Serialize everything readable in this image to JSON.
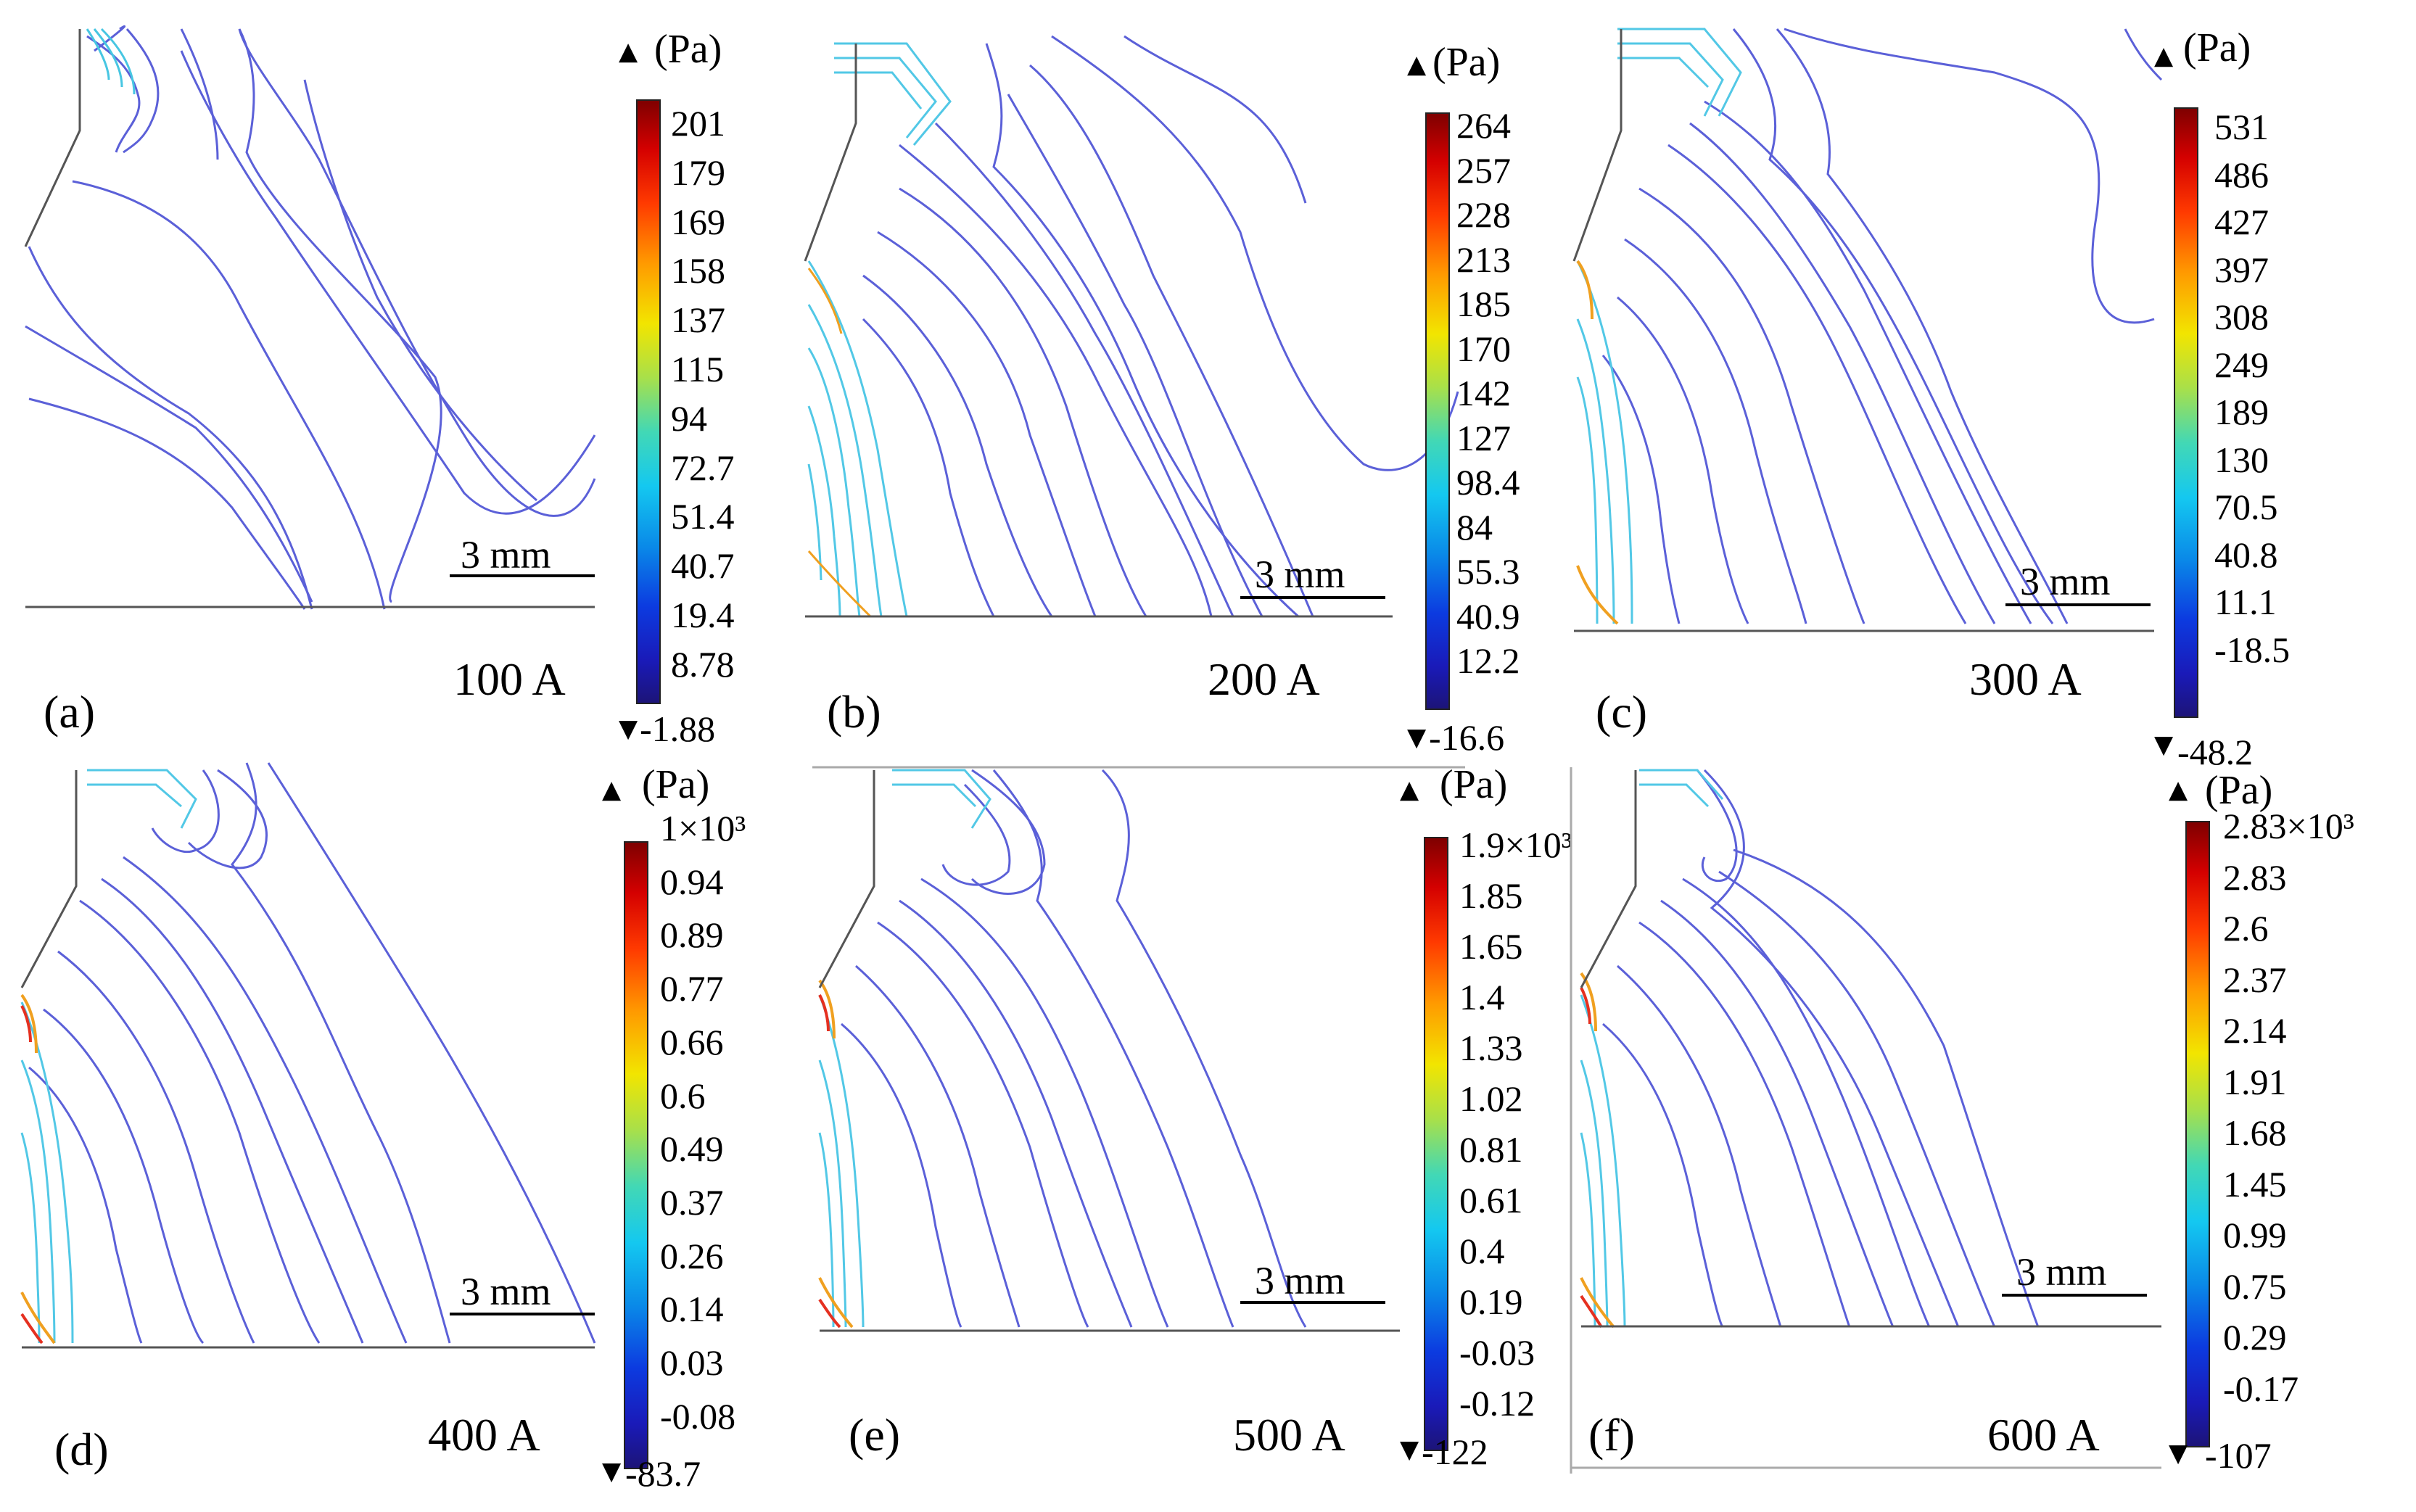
{
  "figure": {
    "unit_label": "(Pa)",
    "scale_bar_label": "3 mm",
    "max_marker": "▲",
    "min_marker": "▼"
  },
  "panels": [
    {
      "id": "a",
      "label": "(a)",
      "current": "100 A",
      "min": "-1.88",
      "ticks": [
        "201",
        "179",
        "169",
        "158",
        "137",
        "115",
        "94",
        "72.7",
        "51.4",
        "40.7",
        "19.4",
        "8.78"
      ]
    },
    {
      "id": "b",
      "label": "(b)",
      "current": "200 A",
      "min": "-16.6",
      "ticks": [
        "264",
        "257",
        "228",
        "213",
        "185",
        "170",
        "142",
        "127",
        "98.4",
        "84",
        "55.3",
        "40.9",
        "12.2"
      ]
    },
    {
      "id": "c",
      "label": "(c)",
      "current": "300 A",
      "min": "-48.2",
      "ticks": [
        "531",
        "486",
        "427",
        "397",
        "308",
        "249",
        "189",
        "130",
        "70.5",
        "40.8",
        "11.1",
        "-18.5"
      ]
    },
    {
      "id": "d",
      "label": "(d)",
      "current": "400 A",
      "min": "-83.7",
      "ticks": [
        "1×10³",
        "0.94",
        "0.89",
        "0.77",
        "0.66",
        "0.6",
        "0.49",
        "0.37",
        "0.26",
        "0.14",
        "0.03",
        "-0.08"
      ]
    },
    {
      "id": "e",
      "label": "(e)",
      "current": "500 A",
      "min": "-122",
      "ticks": [
        "1.9×10³",
        "1.85",
        "1.65",
        "1.4",
        "1.33",
        "1.02",
        "0.81",
        "0.61",
        "0.4",
        "0.19",
        "-0.03",
        "-0.12"
      ]
    },
    {
      "id": "f",
      "label": "(f)",
      "current": "600 A",
      "min": "-107",
      "ticks": [
        "2.83×10³",
        "2.83",
        "2.6",
        "2.37",
        "2.14",
        "1.91",
        "1.68",
        "1.45",
        "0.99",
        "0.75",
        "0.29",
        "-0.17"
      ]
    }
  ]
}
